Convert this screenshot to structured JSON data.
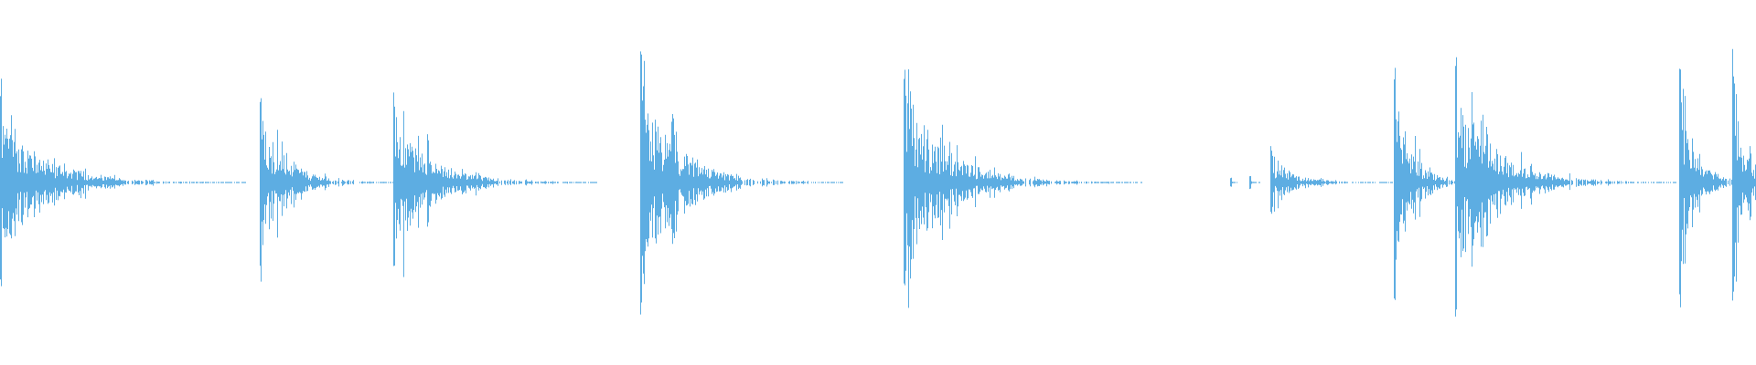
{
  "chart_data": {
    "type": "waveform",
    "title": "",
    "axes_visible": false,
    "grid": false,
    "color": "#5dade2",
    "background": "#ffffff",
    "amplitude_range": [
      -1,
      1
    ],
    "time_range": [
      0,
      1
    ],
    "onsets": [
      {
        "time": 0.0,
        "peak": 0.63,
        "decay": 0.07
      },
      {
        "time": 0.148,
        "peak": 0.61,
        "decay": 0.04
      },
      {
        "time": 0.224,
        "peak": 0.64,
        "decay": 0.058
      },
      {
        "time": 0.365,
        "peak": 0.9,
        "decay": 0.058
      },
      {
        "time": 0.515,
        "peak": 0.78,
        "decay": 0.068
      },
      {
        "time": 0.701,
        "peak": 0.03,
        "decay": 0.002
      },
      {
        "time": 0.712,
        "peak": 0.04,
        "decay": 0.003
      },
      {
        "time": 0.724,
        "peak": 0.21,
        "decay": 0.037
      },
      {
        "time": 0.794,
        "peak": 0.77,
        "decay": 0.03
      },
      {
        "time": 0.829,
        "peak": 0.81,
        "decay": 0.065
      },
      {
        "time": 0.957,
        "peak": 0.8,
        "decay": 0.025
      },
      {
        "time": 0.987,
        "peak": 0.93,
        "decay": 0.02
      }
    ]
  }
}
